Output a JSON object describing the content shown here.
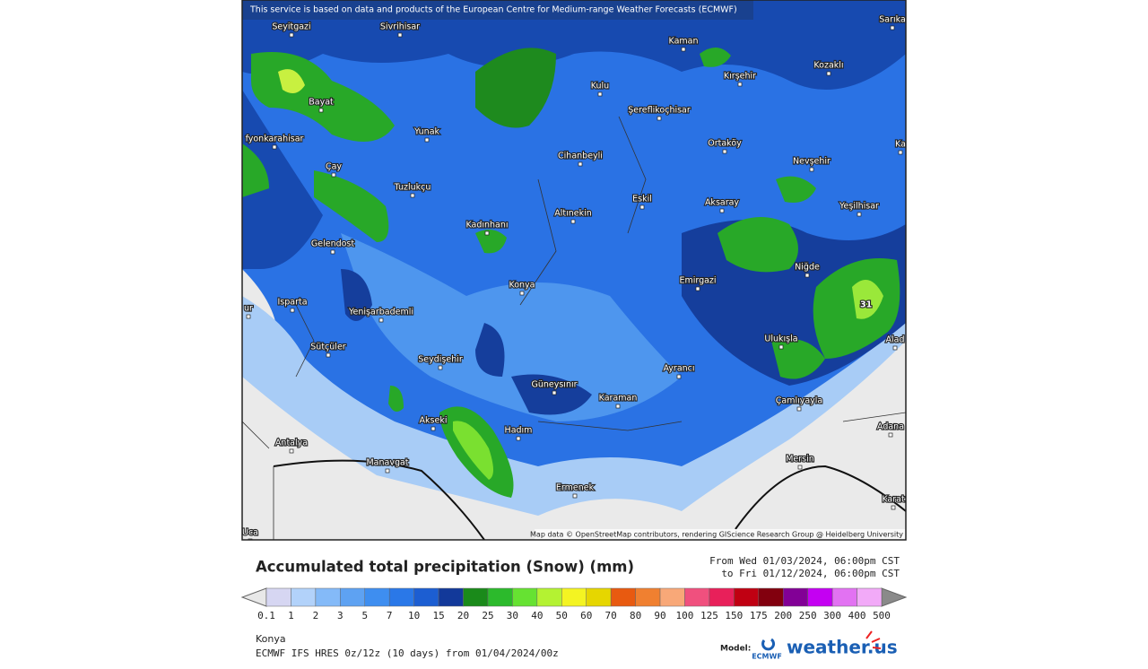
{
  "header_notice": "This service is based on data and products of the European Centre for Medium-range Weather Forecasts (ECMWF)",
  "attribution": "Map data © OpenStreetMap contributors, rendering GIScience Research Group @ Heidelberg University",
  "map_label": "31",
  "cities": [
    "Seyitgazi",
    "Sivrihisar",
    "Kaman",
    "Sarıka",
    "Kozaklı",
    "Kırşehir",
    "Kulu",
    "Bayat",
    "Şereflikoçhisar",
    "Yunak",
    "fyonkarahisar",
    "Ortaköy",
    "Ka",
    "Cihanbeyli",
    "Nevşehir",
    "Çay",
    "Tuzlukçu",
    "Eskil",
    "Aksaray",
    "Yeşilhisar",
    "Altınekin",
    "Kadınhanı",
    "Gelendost",
    "Niğde",
    "Emirgazi",
    "Konya",
    "ur",
    "Isparta",
    "Yenişarbademli",
    "Ulukışla",
    "Alad",
    "Sütçüler",
    "Seydişehir",
    "Ayrancı",
    "Güneysınır",
    "Karaman",
    "Çamlıyayla",
    "Akseki",
    "Adana",
    "Hadım",
    "Antalya",
    "Mersin",
    "Manavgat",
    "Ermenek",
    "Karat",
    "Uca"
  ],
  "legend": {
    "title": "Accumulated total precipitation (Snow) (mm)",
    "period_from": "From Wed 01/03/2024, 06:00pm CST",
    "period_to": "to Fri 01/12/2024, 06:00pm CST",
    "labels": [
      0.1,
      1,
      2,
      3,
      5,
      7,
      10,
      15,
      20,
      25,
      30,
      40,
      50,
      60,
      70,
      80,
      90,
      100,
      125,
      150,
      175,
      200,
      250,
      300,
      400,
      500
    ],
    "colors": [
      "#d6d6f2",
      "#b2d2fa",
      "#84baf8",
      "#5ea2f2",
      "#3e8ef0",
      "#2a78e8",
      "#1c5ed2",
      "#12399a",
      "#1a8a1a",
      "#2cba2c",
      "#66e232",
      "#b4f232",
      "#f4f422",
      "#e6d600",
      "#e85a10",
      "#f08030",
      "#f8a878",
      "#f0507e",
      "#e8205a",
      "#c00012",
      "#82000e",
      "#820096",
      "#c400f2",
      "#e272f2",
      "#f2aaf8",
      "#f8e8fa",
      "#c8c8c8"
    ],
    "under_color": "#e8e8e8",
    "over_color": "#8a8a8a"
  },
  "footer": {
    "location": "Konya",
    "model_run": "ECMWF IFS HRES 0z/12z (10 days) from 01/04/2024/00z",
    "model_label": "Model:",
    "ecmwf_logo": "ECMWF",
    "brand": "weather.us"
  }
}
